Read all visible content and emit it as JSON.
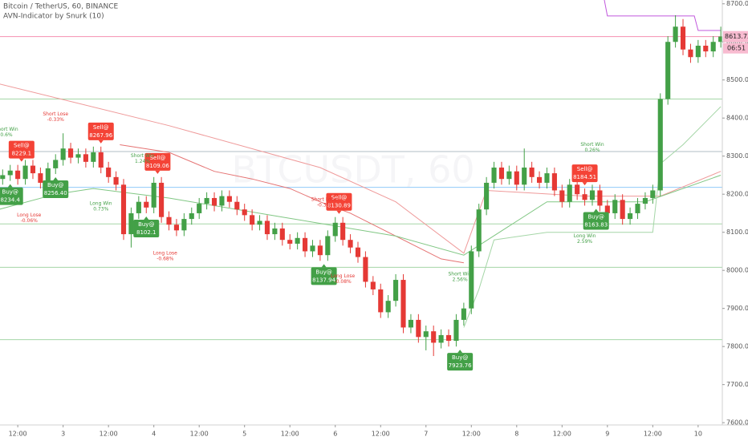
{
  "chart_data": {
    "type": "candlestick",
    "title": "Bitcoin / TetherUS, 60, BINANCE",
    "subtitle": "AVN-Indicator by Snurk (10)",
    "watermark": "BTCUSDT, 60",
    "up_color": "#43a047",
    "down_color": "#e53935",
    "grid": false,
    "xlim": [
      -4.7,
      186.4
    ],
    "ylim": [
      7594,
      8710
    ],
    "xticks": [
      {
        "value": 0,
        "label": "12:00"
      },
      {
        "value": 12,
        "label": "3"
      },
      {
        "value": 24,
        "label": "12:00"
      },
      {
        "value": 36,
        "label": "4"
      },
      {
        "value": 48,
        "label": "12:00"
      },
      {
        "value": 60,
        "label": "5"
      },
      {
        "value": 72,
        "label": "12:00"
      },
      {
        "value": 84,
        "label": "6"
      },
      {
        "value": 96,
        "label": "12:00"
      },
      {
        "value": 108,
        "label": "7"
      },
      {
        "value": 120,
        "label": "12:00"
      },
      {
        "value": 132,
        "label": "8"
      },
      {
        "value": 144,
        "label": "12:00"
      },
      {
        "value": 156,
        "label": "9"
      },
      {
        "value": 168,
        "label": "12:00"
      },
      {
        "value": 180,
        "label": "10"
      }
    ],
    "yticks": [
      {
        "value": 7600,
        "label": "7600.00"
      },
      {
        "value": 7700,
        "label": "7700.00"
      },
      {
        "value": 7800,
        "label": "7800.00"
      },
      {
        "value": 7900,
        "label": "7900.00"
      },
      {
        "value": 8000,
        "label": "8000.00"
      },
      {
        "value": 8100,
        "label": "8100.00"
      },
      {
        "value": 8200,
        "label": "8200.00"
      },
      {
        "value": 8300,
        "label": "8300.00"
      },
      {
        "value": 8400,
        "label": "8400.00"
      },
      {
        "value": 8500,
        "label": "8500.00"
      },
      {
        "value": 8600,
        "label": "8600.00"
      },
      {
        "value": 8700,
        "label": "8700.00"
      }
    ],
    "x": [
      -4,
      -2,
      0,
      2,
      4,
      6,
      8,
      10,
      12,
      14,
      16,
      18,
      20,
      22,
      24,
      26,
      28,
      30,
      32,
      34,
      36,
      38,
      40,
      42,
      44,
      46,
      48,
      50,
      52,
      54,
      56,
      58,
      60,
      62,
      64,
      66,
      68,
      70,
      72,
      74,
      76,
      78,
      80,
      82,
      84,
      86,
      88,
      90,
      92,
      94,
      96,
      98,
      100,
      102,
      104,
      106,
      108,
      110,
      112,
      114,
      116,
      118,
      120,
      122,
      124,
      126,
      128,
      130,
      132,
      134,
      136,
      138,
      140,
      142,
      144,
      146,
      148,
      150,
      152,
      154,
      156,
      158,
      160,
      162,
      164,
      166,
      168,
      170,
      172,
      174,
      176,
      178,
      180,
      182,
      184,
      186
    ],
    "open": [
      8240,
      8250,
      8262,
      8240,
      8275,
      8255,
      8230,
      8268,
      8290,
      8320,
      8296,
      8305,
      8285,
      8310,
      8270,
      8245,
      8225,
      8095,
      8150,
      8180,
      8165,
      8230,
      8140,
      8120,
      8105,
      8135,
      8150,
      8175,
      8190,
      8170,
      8195,
      8180,
      8160,
      8145,
      8120,
      8130,
      8095,
      8110,
      8080,
      8070,
      8085,
      8050,
      8065,
      8040,
      8090,
      8125,
      8080,
      8060,
      8035,
      7970,
      7950,
      7890,
      7920,
      7975,
      7850,
      7870,
      7825,
      7840,
      7810,
      7830,
      7815,
      7870,
      7900,
      8050,
      8160,
      8230,
      8270,
      8240,
      8260,
      8225,
      8270,
      8245,
      8230,
      8255,
      8210,
      8180,
      8225,
      8200,
      8185,
      8210,
      8170,
      8150,
      8185,
      8135,
      8150,
      8175,
      8190,
      8210,
      8450,
      8600,
      8640,
      8580,
      8560,
      8590,
      8575,
      8600
    ],
    "high": [
      8265,
      8277,
      8277,
      8290,
      8290,
      8270,
      8283,
      8305,
      8360,
      8335,
      8320,
      8320,
      8325,
      8325,
      8285,
      8260,
      8240,
      8165,
      8195,
      8195,
      8245,
      8245,
      8155,
      8135,
      8150,
      8165,
      8190,
      8205,
      8205,
      8210,
      8210,
      8195,
      8175,
      8160,
      8145,
      8145,
      8125,
      8125,
      8095,
      8100,
      8100,
      8080,
      8080,
      8105,
      8140,
      8140,
      8095,
      8075,
      8050,
      7985,
      7965,
      7935,
      7990,
      7990,
      7885,
      7885,
      7855,
      7855,
      7845,
      7845,
      7885,
      7915,
      8065,
      8175,
      8245,
      8285,
      8285,
      8275,
      8275,
      8320,
      8285,
      8260,
      8270,
      8270,
      8225,
      8240,
      8240,
      8215,
      8225,
      8225,
      8185,
      8200,
      8200,
      8165,
      8190,
      8205,
      8225,
      8465,
      8615,
      8670,
      8660,
      8595,
      8605,
      8605,
      8615,
      8640
    ],
    "low": [
      8225,
      8235,
      8225,
      8225,
      8240,
      8215,
      8215,
      8253,
      8275,
      8281,
      8281,
      8270,
      8270,
      8255,
      8230,
      8210,
      8080,
      8060,
      8135,
      8150,
      8150,
      8125,
      8105,
      8090,
      8090,
      8120,
      8135,
      8160,
      8155,
      8155,
      8165,
      8145,
      8130,
      8105,
      8105,
      8080,
      8080,
      8065,
      8055,
      8055,
      8035,
      8035,
      8025,
      8025,
      8075,
      8065,
      8045,
      8020,
      7955,
      7935,
      7875,
      7875,
      7905,
      7835,
      7835,
      7810,
      7790,
      7775,
      7795,
      7800,
      7800,
      7855,
      7885,
      8035,
      8145,
      8215,
      8225,
      8225,
      8210,
      8210,
      8230,
      8215,
      8215,
      8195,
      8165,
      8165,
      8185,
      8170,
      8170,
      8155,
      8135,
      8135,
      8120,
      8120,
      8135,
      8160,
      8175,
      8195,
      8435,
      8585,
      8565,
      8545,
      8545,
      8560,
      8560,
      8585
    ],
    "close": [
      8250,
      8262,
      8240,
      8275,
      8255,
      8230,
      8268,
      8290,
      8320,
      8296,
      8305,
      8285,
      8310,
      8270,
      8245,
      8225,
      8095,
      8150,
      8180,
      8165,
      8230,
      8140,
      8120,
      8105,
      8135,
      8150,
      8175,
      8190,
      8170,
      8195,
      8180,
      8160,
      8145,
      8120,
      8130,
      8095,
      8110,
      8080,
      8070,
      8085,
      8050,
      8065,
      8040,
      8090,
      8125,
      8080,
      8060,
      8035,
      7970,
      7950,
      7890,
      7920,
      7975,
      7850,
      7870,
      7825,
      7840,
      7810,
      7830,
      7815,
      7870,
      7900,
      8050,
      8160,
      8230,
      8270,
      8240,
      8260,
      8225,
      8270,
      8245,
      8230,
      8255,
      8210,
      8180,
      8225,
      8200,
      8185,
      8210,
      8170,
      8150,
      8185,
      8135,
      8150,
      8175,
      8190,
      8210,
      8450,
      8600,
      8640,
      8580,
      8560,
      8590,
      8575,
      8600,
      8614
    ],
    "levels": [
      {
        "value": 8614,
        "color": "#f48fb1"
      },
      {
        "value": 8450,
        "color": "#a5d6a7"
      },
      {
        "value": 8312,
        "color": "#b0bec5"
      },
      {
        "value": 8218,
        "color": "#90caf9"
      },
      {
        "value": 8122,
        "color": "#a5d6a7"
      },
      {
        "value": 8008,
        "color": "#a5d6a7"
      },
      {
        "value": 7818,
        "color": "#a5d6a7"
      }
    ],
    "overlays": [
      {
        "color": "#ef9a9a",
        "x": [
          -5,
          40,
          80,
          100,
          118,
          124,
          150,
          170,
          186
        ],
        "values": [
          8490,
          8380,
          8270,
          8180,
          8045,
          8210,
          8195,
          8195,
          8260
        ]
      },
      {
        "color": "#e57373",
        "x": [
          27,
          40,
          52,
          62,
          72,
          80,
          88,
          96,
          106,
          112,
          118
        ],
        "values": [
          8330,
          8310,
          8260,
          8240,
          8215,
          8180,
          8150,
          8110,
          8060,
          8030,
          8020
        ]
      },
      {
        "color": "#81c784",
        "x": [
          -5,
          10,
          20,
          40,
          70,
          100,
          118,
          140,
          166,
          186
        ],
        "values": [
          8160,
          8200,
          8215,
          8190,
          8140,
          8090,
          8040,
          8180,
          8180,
          8250
        ]
      },
      {
        "color": "#a5d6a7",
        "x": [
          118,
          122,
          126,
          140,
          168,
          170,
          176,
          186
        ],
        "values": [
          7850,
          7950,
          8080,
          8100,
          8100,
          8280,
          8330,
          8430
        ]
      },
      {
        "color": "#c158dc",
        "x": [
          155,
          156,
          179,
          180,
          186
        ],
        "values": [
          8720,
          8668,
          8668,
          8630,
          8630
        ]
      }
    ],
    "signals": [
      {
        "side": "buy",
        "label": "Buy@",
        "price": "8234.4",
        "x": -2
      },
      {
        "side": "sell",
        "label": "Sell@",
        "price": "8229.1",
        "x": 1
      },
      {
        "side": "buy",
        "label": "Buy@",
        "price": "8256.40",
        "x": 10
      },
      {
        "side": "sell",
        "label": "Sell@",
        "price": "8267.96",
        "x": 22
      },
      {
        "side": "buy",
        "label": "Buy@",
        "price": "8102.1",
        "x": 34
      },
      {
        "side": "sell",
        "label": "Sell@",
        "price": "8109.06",
        "x": 37
      },
      {
        "side": "buy",
        "label": "Buy@",
        "price": "8137.94",
        "x": 81
      },
      {
        "side": "sell",
        "label": "Sell@",
        "price": "8130.89",
        "x": 85
      },
      {
        "side": "buy",
        "label": "Buy@",
        "price": "7923.76",
        "x": 117
      },
      {
        "side": "sell",
        "label": "Sell@",
        "price": "8184.51",
        "x": 150
      },
      {
        "side": "buy",
        "label": "Buy@",
        "price": "8163.83",
        "x": 153
      }
    ],
    "notes": [
      {
        "side": "sell",
        "text": "Short Win",
        "pct": "0.6%",
        "x": -3,
        "color": "#43a047"
      },
      {
        "side": "buy",
        "text": "Long Lose",
        "pct": "-0.06%",
        "x": 3,
        "color": "#e53935"
      },
      {
        "side": "sell",
        "text": "Short Lose",
        "pct": "-0.33%",
        "x": 10,
        "color": "#e53935"
      },
      {
        "side": "buy",
        "text": "Long Win",
        "pct": "0.73%",
        "x": 22,
        "color": "#43a047"
      },
      {
        "side": "sell",
        "text": "Short Win",
        "pct": "1.24%",
        "x": 33,
        "color": "#43a047"
      },
      {
        "side": "buy",
        "text": "Long Lose",
        "pct": "-0.68%",
        "x": 39,
        "color": "#e53935"
      },
      {
        "side": "sell",
        "text": "Short Lose",
        "pct": "-0.3%",
        "x": 81,
        "color": "#e53935"
      },
      {
        "side": "buy",
        "text": "Long Lose",
        "pct": "-0.08%",
        "x": 86,
        "color": "#e53935"
      },
      {
        "side": "sell",
        "text": "Short Win",
        "pct": "2.56%",
        "x": 117,
        "color": "#43a047"
      },
      {
        "side": "sell",
        "text": "Short Win",
        "pct": "0.26%",
        "x": 152,
        "color": "#43a047"
      },
      {
        "side": "buy",
        "text": "Long Win",
        "pct": "2.59%",
        "x": 150,
        "color": "#43a047"
      }
    ],
    "last_price": 8613.73,
    "countdown": "06:51"
  }
}
